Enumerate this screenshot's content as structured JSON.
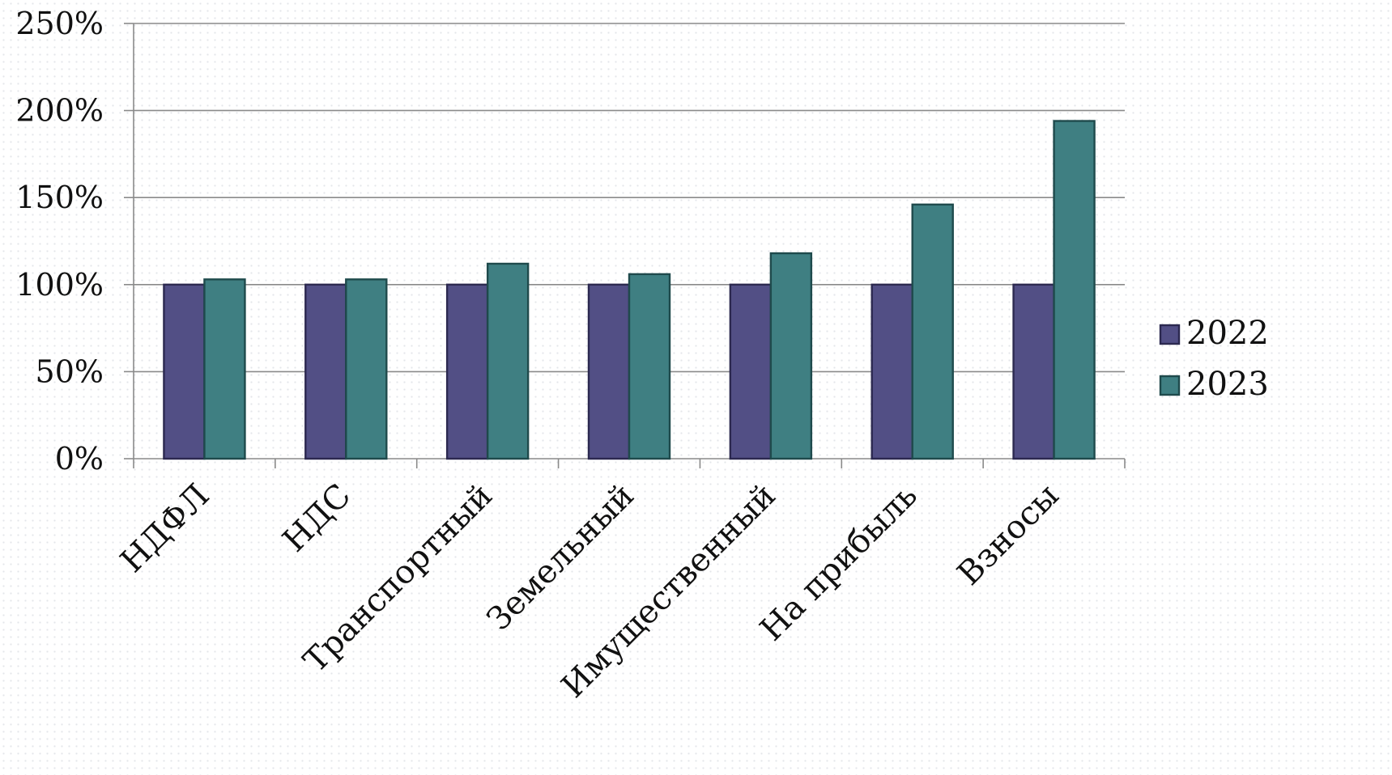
{
  "chart_data": {
    "type": "bar",
    "categories": [
      "НДФЛ",
      "НДС",
      "Транспортный",
      "Земельный",
      "Имущественный",
      "На прибыль",
      "Взносы"
    ],
    "series": [
      {
        "name": "2022",
        "color": "#524f85",
        "values": [
          100,
          100,
          100,
          100,
          100,
          100,
          100
        ]
      },
      {
        "name": "2023",
        "color": "#3f7f82",
        "values": [
          103,
          103,
          112,
          106,
          118,
          146,
          194
        ]
      }
    ],
    "ylim": [
      0,
      250
    ],
    "yticks": [
      "0%",
      "50%",
      "100%",
      "150%",
      "200%",
      "250%"
    ],
    "ytick_values": [
      0,
      50,
      100,
      150,
      200,
      250
    ],
    "grid": true,
    "legend_position": "right"
  }
}
